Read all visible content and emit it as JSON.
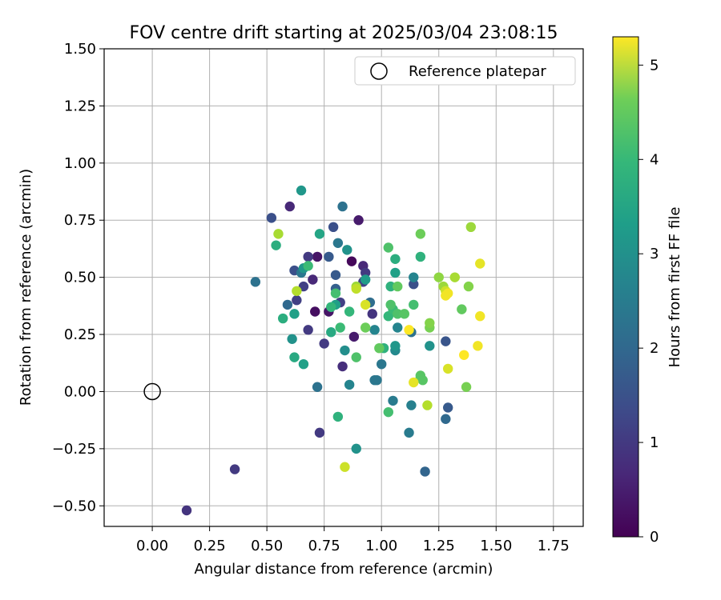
{
  "chart_data": {
    "type": "scatter",
    "title": "FOV centre drift starting at 2025/03/04 23:08:15",
    "xlabel": "Angular distance from reference (arcmin)",
    "ylabel": "Rotation from reference (arcmin)",
    "xlim": [
      -0.21,
      1.88
    ],
    "ylim": [
      -0.59,
      1.5
    ],
    "xticks": [
      "0.00",
      "0.25",
      "0.50",
      "0.75",
      "1.00",
      "1.25",
      "1.50",
      "1.75"
    ],
    "yticks": [
      "−0.50",
      "−0.25",
      "0.00",
      "0.25",
      "0.50",
      "0.75",
      "1.00",
      "1.25",
      "1.50"
    ],
    "grid": true,
    "colormap": "viridis",
    "colorbar": {
      "label": "Hours from first FF file",
      "range": [
        0,
        5.3
      ],
      "ticks": [
        "0",
        "1",
        "2",
        "3",
        "4",
        "5"
      ]
    },
    "legend": {
      "position": "top-right",
      "entries": [
        "Reference platepar"
      ]
    },
    "reference_point": {
      "x": 0.0,
      "y": 0.0
    },
    "series": [
      {
        "points": [
          {
            "x": 0.87,
            "y": 0.57,
            "h": 0.1
          },
          {
            "x": 0.71,
            "y": 0.35,
            "h": 0.2
          },
          {
            "x": 0.72,
            "y": 0.59,
            "h": 0.3
          },
          {
            "x": 0.77,
            "y": 0.35,
            "h": 0.3
          },
          {
            "x": 0.88,
            "y": 0.24,
            "h": 0.4
          },
          {
            "x": 0.9,
            "y": 0.75,
            "h": 0.4
          },
          {
            "x": 0.6,
            "y": 0.81,
            "h": 0.6
          },
          {
            "x": 0.7,
            "y": 0.49,
            "h": 0.6
          },
          {
            "x": 0.92,
            "y": 0.55,
            "h": 0.6
          },
          {
            "x": 0.83,
            "y": 0.11,
            "h": 0.7
          },
          {
            "x": 0.96,
            "y": 0.34,
            "h": 0.8
          },
          {
            "x": 0.15,
            "y": -0.52,
            "h": 0.8
          },
          {
            "x": 0.36,
            "y": -0.34,
            "h": 0.9
          },
          {
            "x": 0.73,
            "y": -0.18,
            "h": 0.9
          },
          {
            "x": 0.68,
            "y": 0.27,
            "h": 0.9
          },
          {
            "x": 0.75,
            "y": 0.21,
            "h": 0.9
          },
          {
            "x": 0.68,
            "y": 0.59,
            "h": 0.9
          },
          {
            "x": 0.93,
            "y": 0.52,
            "h": 0.9
          },
          {
            "x": 0.63,
            "y": 0.4,
            "h": 1.0
          },
          {
            "x": 0.66,
            "y": 0.46,
            "h": 1.0
          },
          {
            "x": 0.82,
            "y": 0.39,
            "h": 1.0
          },
          {
            "x": 0.92,
            "y": 0.48,
            "h": 1.0
          },
          {
            "x": 0.52,
            "y": 0.76,
            "h": 1.3
          },
          {
            "x": 0.62,
            "y": 0.53,
            "h": 1.3
          },
          {
            "x": 0.79,
            "y": 0.72,
            "h": 1.3
          },
          {
            "x": 1.14,
            "y": 0.47,
            "h": 1.3
          },
          {
            "x": 1.28,
            "y": 0.22,
            "h": 1.4
          },
          {
            "x": 0.77,
            "y": 0.59,
            "h": 1.5
          },
          {
            "x": 0.8,
            "y": 0.51,
            "h": 1.5
          },
          {
            "x": 1.29,
            "y": -0.07,
            "h": 1.5
          },
          {
            "x": 0.8,
            "y": 0.45,
            "h": 1.6
          },
          {
            "x": 1.19,
            "y": -0.35,
            "h": 1.7
          },
          {
            "x": 0.59,
            "y": 0.38,
            "h": 1.8
          },
          {
            "x": 1.28,
            "y": -0.12,
            "h": 1.8
          },
          {
            "x": 0.95,
            "y": 0.39,
            "h": 1.9
          },
          {
            "x": 0.83,
            "y": 0.81,
            "h": 2.0
          },
          {
            "x": 0.45,
            "y": 0.48,
            "h": 2.0
          },
          {
            "x": 0.72,
            "y": 0.02,
            "h": 2.0
          },
          {
            "x": 1.13,
            "y": 0.26,
            "h": 2.0
          },
          {
            "x": 0.65,
            "y": 0.52,
            "h": 2.1
          },
          {
            "x": 0.81,
            "y": 0.65,
            "h": 2.1
          },
          {
            "x": 0.97,
            "y": 0.05,
            "h": 2.1
          },
          {
            "x": 0.98,
            "y": 0.05,
            "h": 2.1
          },
          {
            "x": 1.0,
            "y": 0.12,
            "h": 2.1
          },
          {
            "x": 1.05,
            "y": -0.04,
            "h": 2.2
          },
          {
            "x": 1.12,
            "y": -0.18,
            "h": 2.2
          },
          {
            "x": 1.13,
            "y": -0.06,
            "h": 2.3
          },
          {
            "x": 0.86,
            "y": 0.03,
            "h": 2.4
          },
          {
            "x": 0.97,
            "y": 0.27,
            "h": 2.4
          },
          {
            "x": 1.07,
            "y": 0.28,
            "h": 2.4
          },
          {
            "x": 1.14,
            "y": 0.5,
            "h": 2.4
          },
          {
            "x": 1.06,
            "y": 0.18,
            "h": 2.5
          },
          {
            "x": 0.84,
            "y": 0.18,
            "h": 2.6
          },
          {
            "x": 0.85,
            "y": 0.62,
            "h": 2.7
          },
          {
            "x": 0.61,
            "y": 0.23,
            "h": 2.7
          },
          {
            "x": 0.89,
            "y": -0.25,
            "h": 2.7
          },
          {
            "x": 1.21,
            "y": 0.2,
            "h": 2.7
          },
          {
            "x": 0.66,
            "y": 0.54,
            "h": 2.8
          },
          {
            "x": 0.65,
            "y": 0.88,
            "h": 2.8
          },
          {
            "x": 1.06,
            "y": 0.2,
            "h": 2.8
          },
          {
            "x": 0.93,
            "y": 0.49,
            "h": 2.9
          },
          {
            "x": 0.66,
            "y": 0.12,
            "h": 3.0
          },
          {
            "x": 0.62,
            "y": 0.34,
            "h": 3.0
          },
          {
            "x": 0.8,
            "y": 0.38,
            "h": 3.0
          },
          {
            "x": 1.06,
            "y": 0.52,
            "h": 3.0
          },
          {
            "x": 0.73,
            "y": 0.69,
            "h": 3.1
          },
          {
            "x": 0.78,
            "y": 0.26,
            "h": 3.2
          },
          {
            "x": 0.62,
            "y": 0.15,
            "h": 3.2
          },
          {
            "x": 0.57,
            "y": 0.32,
            "h": 3.3
          },
          {
            "x": 0.54,
            "y": 0.64,
            "h": 3.3
          },
          {
            "x": 1.06,
            "y": 0.58,
            "h": 3.3
          },
          {
            "x": 0.81,
            "y": -0.11,
            "h": 3.4
          },
          {
            "x": 1.01,
            "y": 0.19,
            "h": 3.4
          },
          {
            "x": 1.04,
            "y": 0.46,
            "h": 3.4
          },
          {
            "x": 1.17,
            "y": 0.59,
            "h": 3.4
          },
          {
            "x": 0.86,
            "y": 0.35,
            "h": 3.5
          },
          {
            "x": 0.78,
            "y": 0.37,
            "h": 3.5
          },
          {
            "x": 1.03,
            "y": 0.33,
            "h": 3.5
          },
          {
            "x": 0.68,
            "y": 0.55,
            "h": 3.6
          },
          {
            "x": 1.17,
            "y": 0.06,
            "h": 3.6
          },
          {
            "x": 0.82,
            "y": 0.28,
            "h": 3.6
          },
          {
            "x": 1.05,
            "y": 0.36,
            "h": 3.6
          },
          {
            "x": 1.14,
            "y": 0.38,
            "h": 3.7
          },
          {
            "x": 0.8,
            "y": 0.43,
            "h": 3.7
          },
          {
            "x": 1.03,
            "y": -0.09,
            "h": 3.7
          },
          {
            "x": 1.07,
            "y": 0.34,
            "h": 3.8
          },
          {
            "x": 0.89,
            "y": 0.15,
            "h": 3.8
          },
          {
            "x": 1.04,
            "y": 0.38,
            "h": 3.8
          },
          {
            "x": 1.03,
            "y": 0.63,
            "h": 3.8
          },
          {
            "x": 1.17,
            "y": 0.07,
            "h": 3.9
          },
          {
            "x": 1.18,
            "y": 0.05,
            "h": 3.9
          },
          {
            "x": 1.1,
            "y": 0.34,
            "h": 3.9
          },
          {
            "x": 1.35,
            "y": 0.36,
            "h": 4.0
          },
          {
            "x": 1.07,
            "y": 0.46,
            "h": 4.0
          },
          {
            "x": 0.99,
            "y": 0.19,
            "h": 4.0
          },
          {
            "x": 0.93,
            "y": 0.28,
            "h": 4.1
          },
          {
            "x": 1.17,
            "y": 0.69,
            "h": 4.1
          },
          {
            "x": 1.21,
            "y": 0.28,
            "h": 4.2
          },
          {
            "x": 1.37,
            "y": 0.02,
            "h": 4.2
          },
          {
            "x": 1.21,
            "y": 0.3,
            "h": 4.3
          },
          {
            "x": 1.38,
            "y": 0.46,
            "h": 4.3
          },
          {
            "x": 1.25,
            "y": 0.5,
            "h": 4.4
          },
          {
            "x": 1.39,
            "y": 0.72,
            "h": 4.5
          },
          {
            "x": 1.27,
            "y": 0.46,
            "h": 4.5
          },
          {
            "x": 0.89,
            "y": 0.46,
            "h": 4.5
          },
          {
            "x": 0.55,
            "y": 0.69,
            "h": 4.6
          },
          {
            "x": 1.32,
            "y": 0.5,
            "h": 4.6
          },
          {
            "x": 1.2,
            "y": -0.06,
            "h": 4.7
          },
          {
            "x": 0.63,
            "y": 0.44,
            "h": 4.7
          },
          {
            "x": 0.89,
            "y": 0.45,
            "h": 4.8
          },
          {
            "x": 1.28,
            "y": 0.44,
            "h": 4.9
          },
          {
            "x": 0.84,
            "y": -0.33,
            "h": 4.9
          },
          {
            "x": 0.93,
            "y": 0.38,
            "h": 5.0
          },
          {
            "x": 1.29,
            "y": 0.1,
            "h": 5.0
          },
          {
            "x": 1.43,
            "y": 0.56,
            "h": 5.1
          },
          {
            "x": 1.14,
            "y": 0.04,
            "h": 5.1
          },
          {
            "x": 1.28,
            "y": 0.42,
            "h": 5.2
          },
          {
            "x": 1.29,
            "y": 0.43,
            "h": 5.2
          },
          {
            "x": 1.43,
            "y": 0.33,
            "h": 5.2
          },
          {
            "x": 1.42,
            "y": 0.2,
            "h": 5.2
          },
          {
            "x": 1.12,
            "y": 0.27,
            "h": 5.3
          },
          {
            "x": 1.36,
            "y": 0.16,
            "h": 5.3
          }
        ]
      }
    ]
  }
}
